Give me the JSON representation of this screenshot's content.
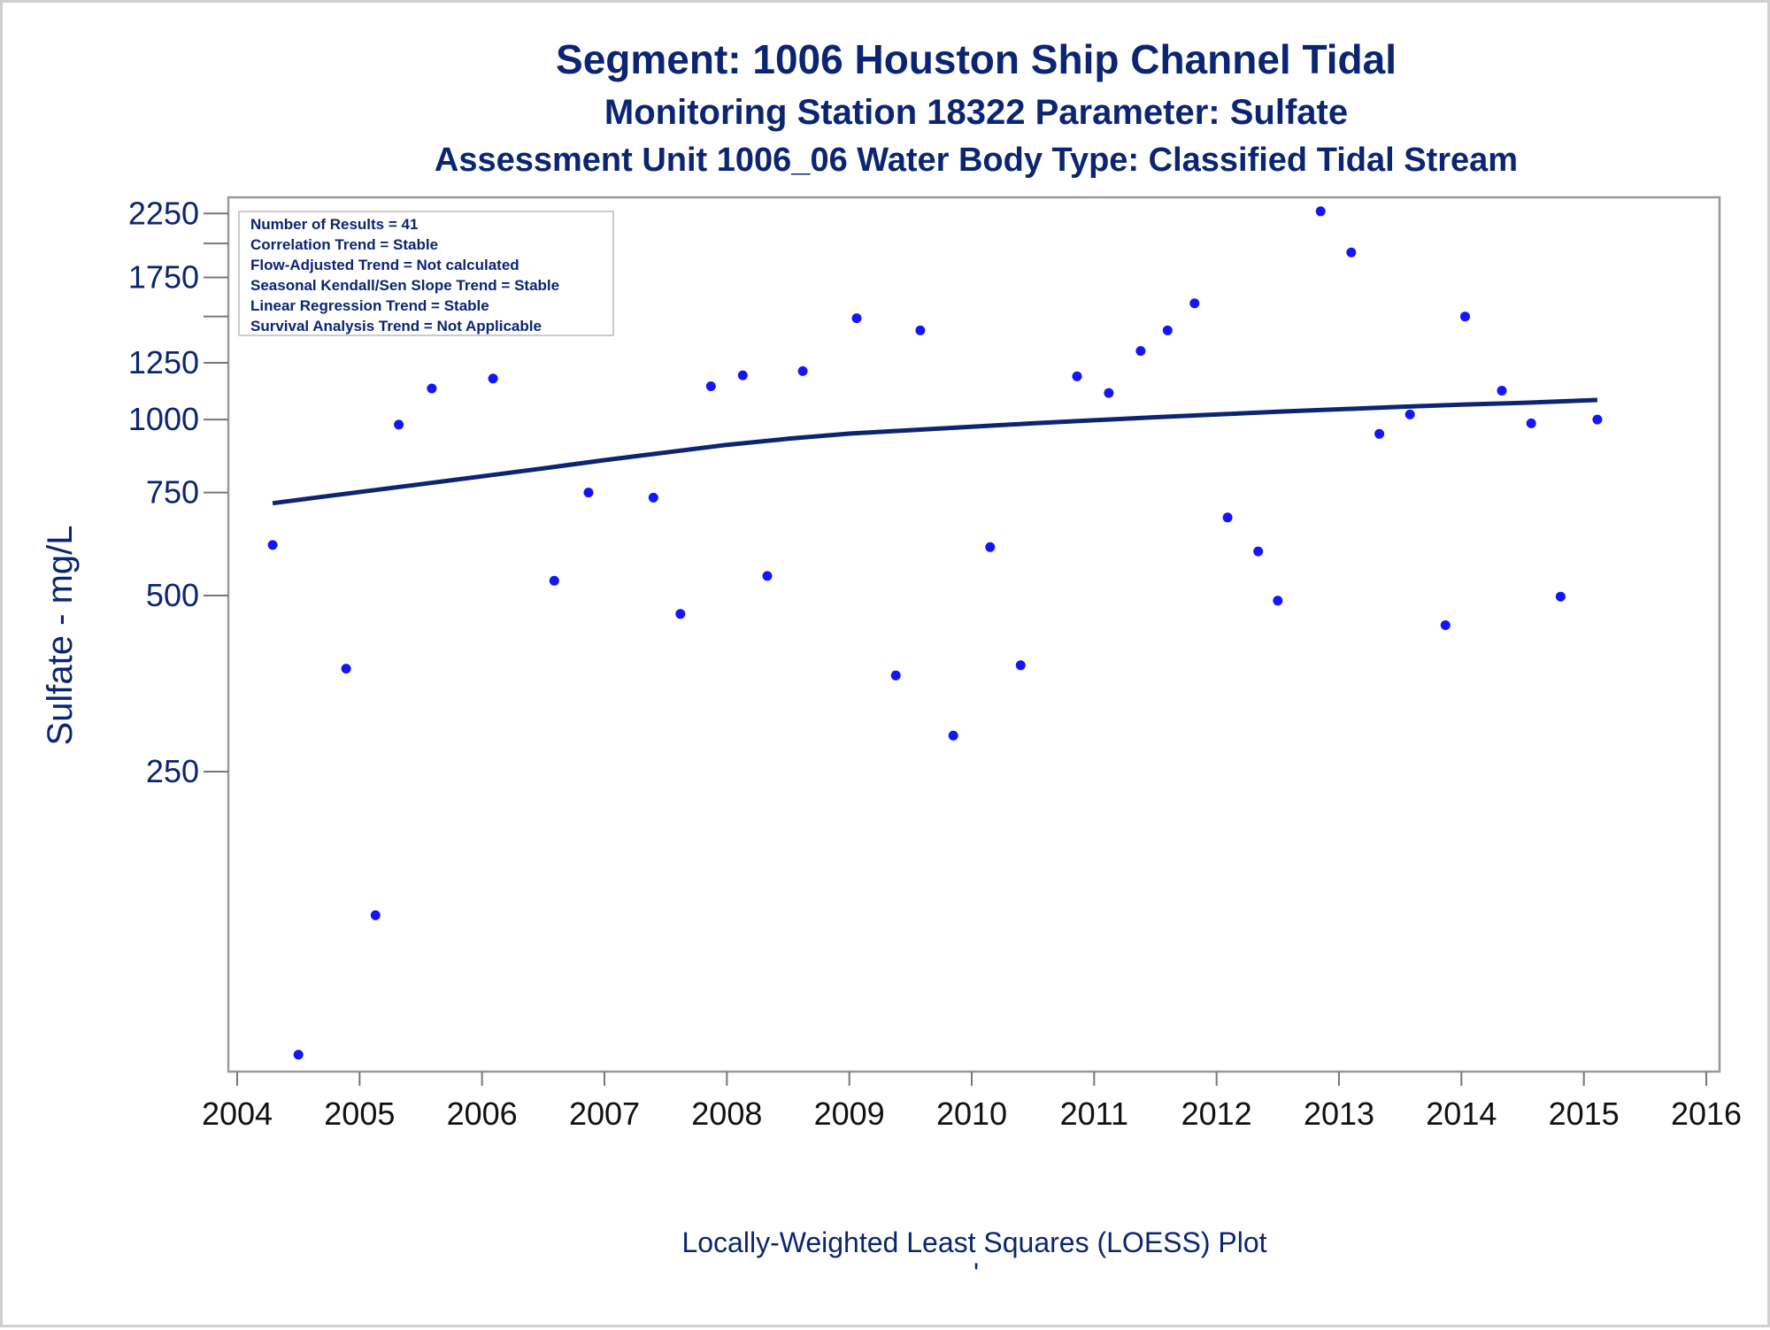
{
  "chart_data": {
    "type": "scatter",
    "title": "Segment: 1006  Houston Ship Channel Tidal",
    "subtitle": "Monitoring Station 18322 Parameter: Sulfate",
    "subtitle2": "Assessment Unit 1006_06   Water Body Type: Classified Tidal Stream",
    "ylabel": "Sulfate - mg/L",
    "footnote": "Locally-Weighted Least Squares (LOESS) Plot",
    "footnote_mark": "'",
    "y_scale": "log",
    "ylim": [
      80,
      2300
    ],
    "xlim": [
      2004,
      2016
    ],
    "y_ticks": [
      250,
      500,
      750,
      1000,
      1250,
      1750,
      2250
    ],
    "y_minor_ticks": [
      1500,
      2000
    ],
    "x_ticks": [
      2004,
      2005,
      2006,
      2007,
      2008,
      2009,
      2010,
      2011,
      2012,
      2013,
      2014,
      2015,
      2016
    ],
    "stats_box": [
      "Number of Results = 41",
      "Correlation Trend = Stable",
      "Flow-Adjusted Trend = Not calculated",
      "Seasonal Kendall/Sen Slope Trend = Stable",
      "Linear Regression Trend = Stable",
      "Survival Analysis Trend = Not Applicable"
    ],
    "series": [
      {
        "kind": "points",
        "color": "#1414ff",
        "x": [
          2004.29,
          2004.5,
          2004.89,
          2005.13,
          2005.32,
          2005.59,
          2005.93,
          2006.09,
          2006.31,
          2006.59,
          2006.87,
          2007.4,
          2007.62,
          2007.87,
          2008.13,
          2008.33,
          2008.62,
          2009.06,
          2009.38,
          2009.58,
          2009.85,
          2010.15,
          2010.4,
          2010.86,
          2011.12,
          2011.38,
          2011.6,
          2011.82,
          2012.09,
          2012.34,
          2012.5,
          2012.85,
          2013.1,
          2013.33,
          2013.58,
          2013.87,
          2014.03,
          2014.33,
          2014.57,
          2014.81,
          2015.11
        ],
        "y": [
          610,
          82,
          375,
          142,
          980,
          1130,
          1840,
          1175,
          1560,
          530,
          750,
          735,
          465,
          1140,
          1190,
          540,
          1210,
          1490,
          365,
          1420,
          288,
          605,
          380,
          1185,
          1110,
          1310,
          1420,
          1580,
          680,
          595,
          490,
          2270,
          1930,
          945,
          1020,
          445,
          1500,
          1120,
          985,
          498,
          1000
        ]
      },
      {
        "kind": "loess",
        "color": "#0b2573",
        "x": [
          2004.29,
          2004.7,
          2005.5,
          2006.5,
          2007.0,
          2008.0,
          2008.5,
          2009.0,
          2009.5,
          2010.0,
          2010.5,
          2011.0,
          2011.5,
          2012.0,
          2012.5,
          2013.0,
          2013.5,
          2014.0,
          2014.5,
          2015.11
        ],
        "y": [
          719,
          738,
          775,
          825,
          852,
          905,
          927,
          946,
          959,
          972,
          985,
          997,
          1009,
          1020,
          1031,
          1041,
          1051,
          1060,
          1068,
          1080
        ]
      }
    ]
  }
}
